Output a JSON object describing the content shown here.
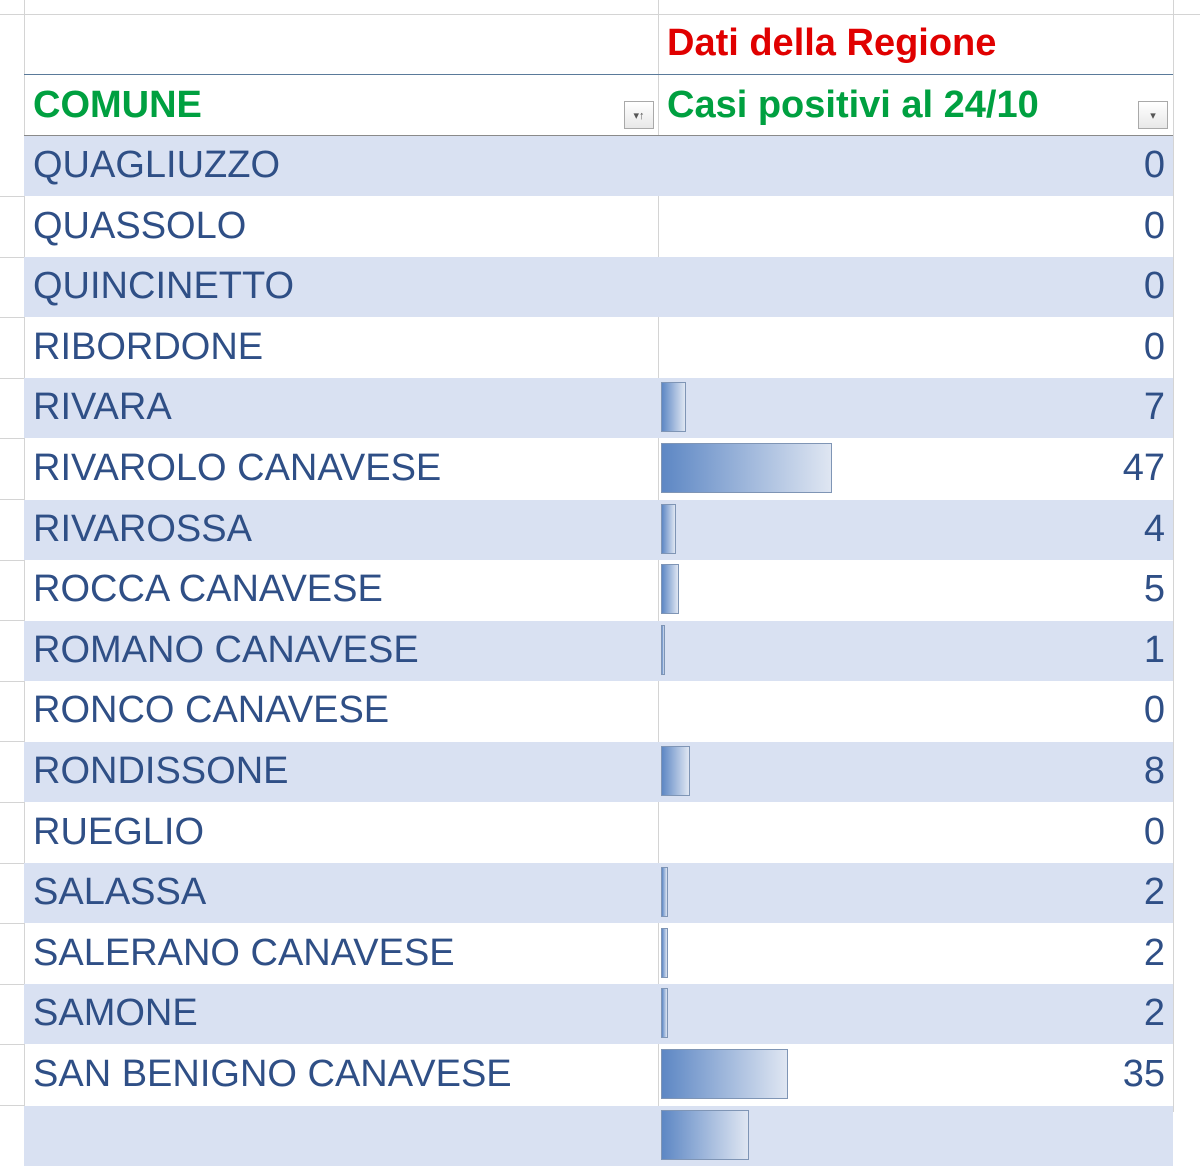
{
  "header": {
    "group_title": "Dati della Regione",
    "col_comune": "COMUNE",
    "col_casi": "Casi positivi al 24/10"
  },
  "colors": {
    "title": "#e00000",
    "header": "#00a040",
    "text": "#2f4f86",
    "band": "#d9e1f2",
    "bar": "#5d87c4"
  },
  "bar_max": 47,
  "rows": [
    {
      "name": "QUAGLIUZZO",
      "value": 0
    },
    {
      "name": "QUASSOLO",
      "value": 0
    },
    {
      "name": "QUINCINETTO",
      "value": 0
    },
    {
      "name": "RIBORDONE",
      "value": 0
    },
    {
      "name": "RIVARA",
      "value": 7
    },
    {
      "name": "RIVAROLO CANAVESE",
      "value": 47
    },
    {
      "name": "RIVAROSSA",
      "value": 4
    },
    {
      "name": "ROCCA CANAVESE",
      "value": 5
    },
    {
      "name": "ROMANO CANAVESE",
      "value": 1
    },
    {
      "name": "RONCO CANAVESE",
      "value": 0
    },
    {
      "name": "RONDISSONE",
      "value": 8
    },
    {
      "name": "RUEGLIO",
      "value": 0
    },
    {
      "name": "SALASSA",
      "value": 2
    },
    {
      "name": "SALERANO CANAVESE",
      "value": 2
    },
    {
      "name": "SAMONE",
      "value": 2
    },
    {
      "name": "SAN BENIGNO CANAVESE",
      "value": 35
    }
  ]
}
